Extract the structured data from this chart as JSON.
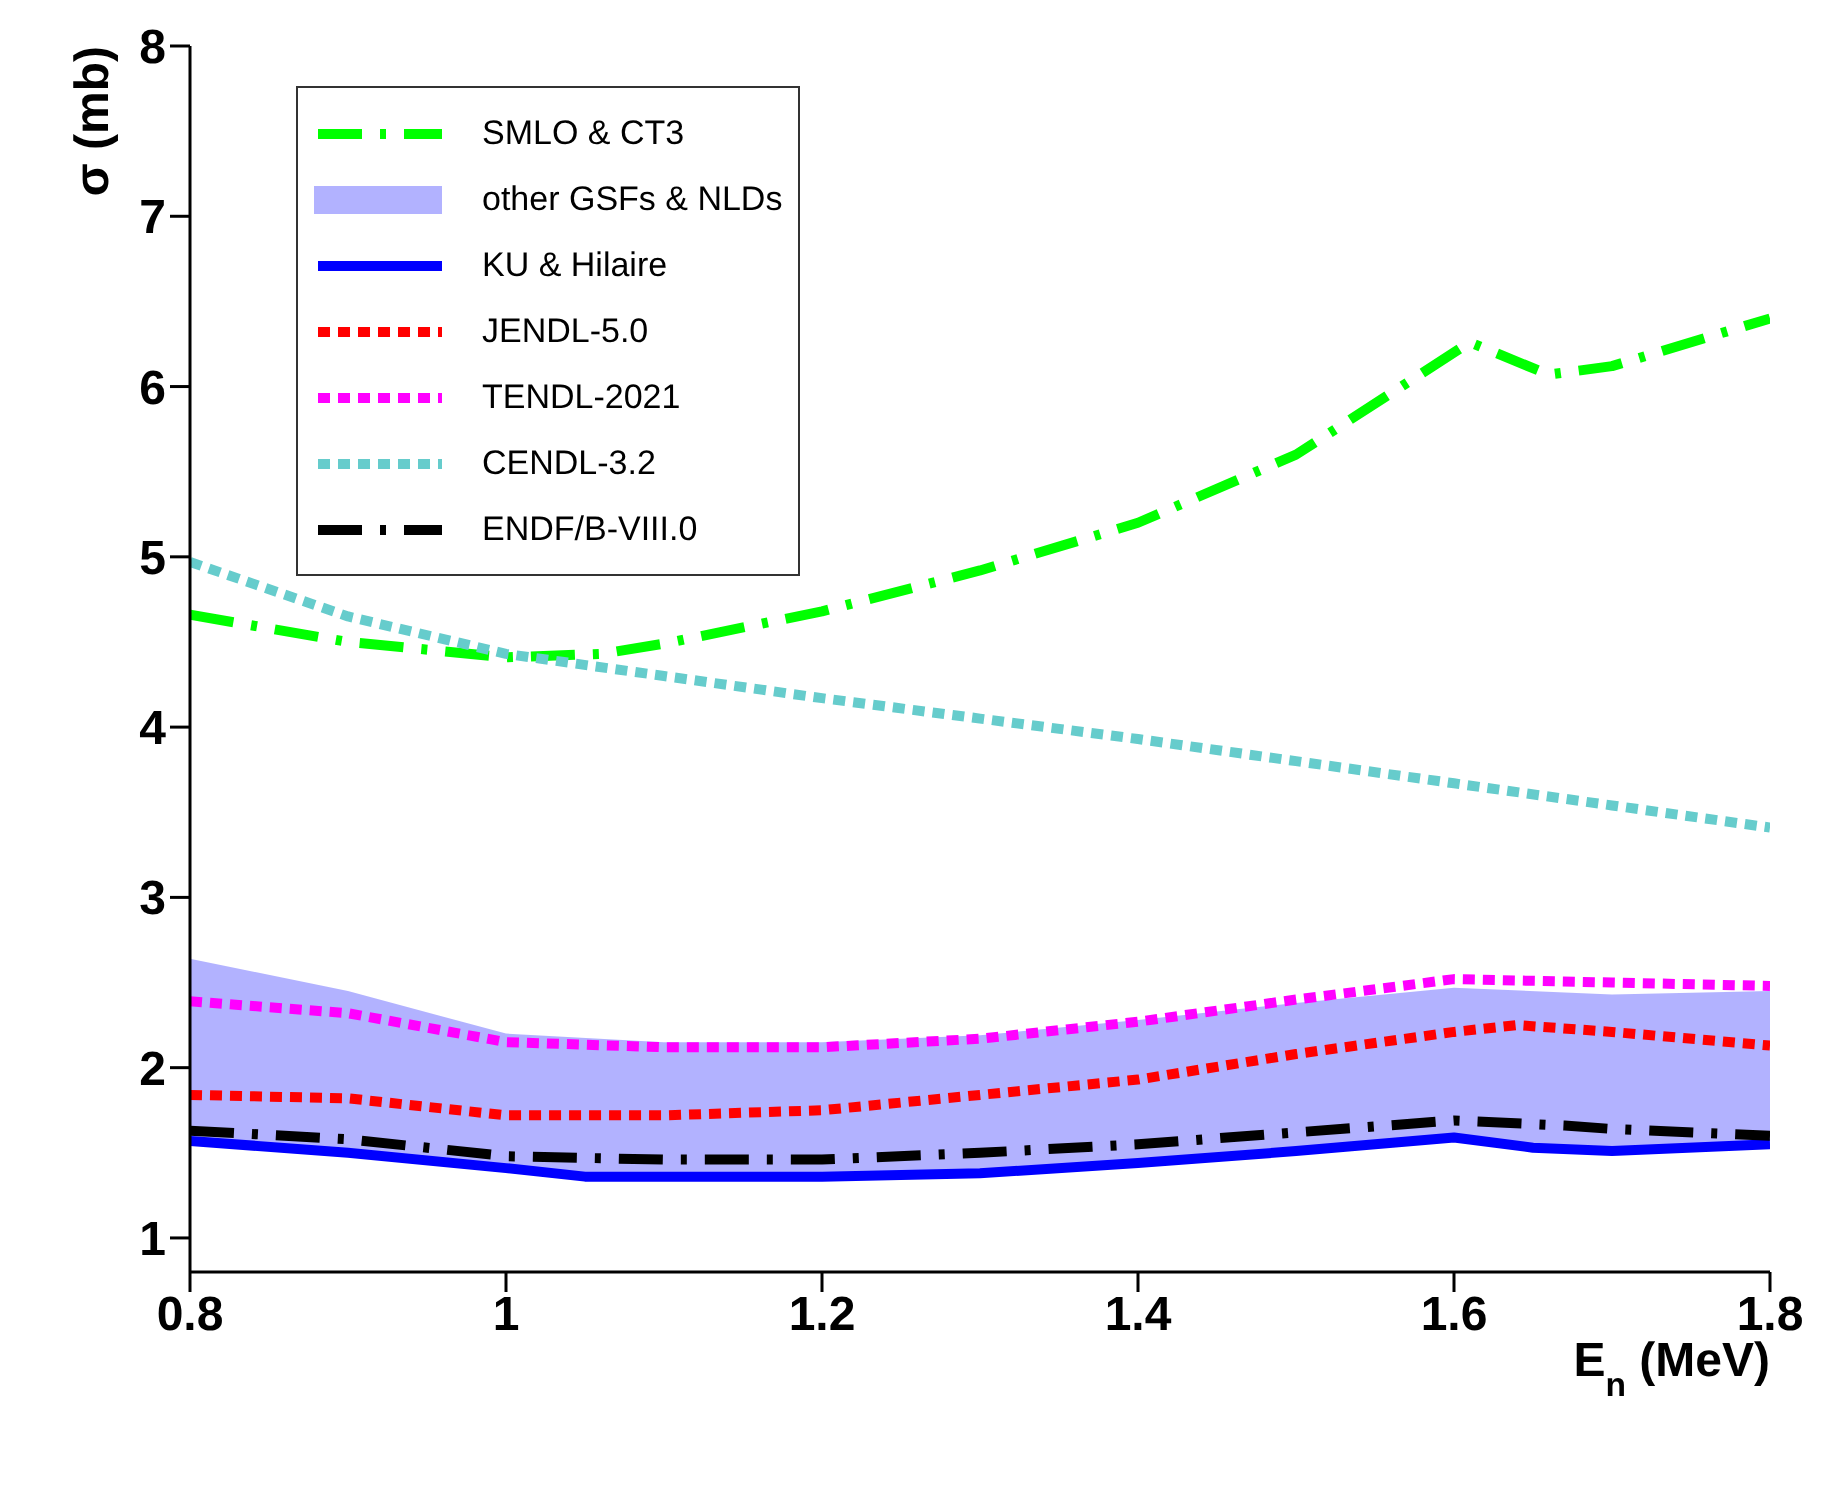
{
  "chart_data": {
    "type": "line",
    "xlabel": "E$_{n}$ (MeV)",
    "ylabel": "σ (mb)",
    "xlim": [
      0.8,
      1.8
    ],
    "xticks": [
      0.8,
      1,
      1.2,
      1.4,
      1.6,
      1.8
    ],
    "ylim": [
      0.8,
      8
    ],
    "yticks": [
      1,
      2,
      3,
      4,
      5,
      6,
      7,
      8
    ],
    "grid": false,
    "legend": "top left",
    "marker": "none",
    "series": [
      {
        "name": "SMLO & CT3",
        "color": "#00ff00",
        "line_style": "dashed",
        "x": [
          0.8,
          0.9,
          1.0,
          1.06,
          1.1,
          1.2,
          1.3,
          1.4,
          1.5,
          1.61,
          1.66,
          1.7,
          1.8
        ],
        "values": [
          4.66,
          4.5,
          4.41,
          4.43,
          4.49,
          4.68,
          4.92,
          5.2,
          5.6,
          6.26,
          6.07,
          6.12,
          6.4
        ]
      },
      {
        "name": "other GSFs & NLDs",
        "type": "area",
        "color": "#0000ff",
        "x": [
          0.8,
          0.9,
          1.0,
          1.1,
          1.2,
          1.3,
          1.4,
          1.5,
          1.6,
          1.7,
          1.8
        ],
        "values": [
          null,
          null,
          null,
          null,
          null,
          null,
          null,
          null,
          null,
          null,
          null
        ],
        "lower": [
          1.57,
          1.5,
          1.41,
          1.36,
          1.36,
          1.38,
          1.44,
          1.51,
          1.59,
          1.51,
          1.55
        ],
        "upper": [
          2.64,
          2.45,
          2.2,
          2.15,
          2.15,
          2.19,
          2.28,
          2.38,
          2.47,
          2.43,
          2.45
        ]
      },
      {
        "name": "KU & Hilaire",
        "color": "#0000ff",
        "line_style": "solid",
        "x": [
          0.8,
          0.9,
          1.0,
          1.05,
          1.2,
          1.3,
          1.4,
          1.5,
          1.6,
          1.65,
          1.7,
          1.8
        ],
        "values": [
          1.57,
          1.5,
          1.41,
          1.36,
          1.36,
          1.38,
          1.44,
          1.51,
          1.59,
          1.53,
          1.51,
          1.55
        ]
      },
      {
        "name": "JENDL-5.0",
        "color": "#ff0000",
        "line_style": "dotted",
        "x": [
          0.8,
          0.9,
          1.0,
          1.1,
          1.2,
          1.3,
          1.4,
          1.5,
          1.6,
          1.64,
          1.7,
          1.8
        ],
        "values": [
          1.84,
          1.82,
          1.72,
          1.72,
          1.75,
          1.84,
          1.93,
          2.08,
          2.21,
          2.25,
          2.21,
          2.13
        ]
      },
      {
        "name": "TENDL-2021",
        "color": "#ff00ff",
        "line_style": "dotted",
        "x": [
          0.8,
          0.9,
          1.0,
          1.1,
          1.2,
          1.3,
          1.4,
          1.5,
          1.6,
          1.7,
          1.8
        ],
        "values": [
          2.39,
          2.32,
          2.15,
          2.12,
          2.12,
          2.17,
          2.27,
          2.4,
          2.52,
          2.5,
          2.48
        ]
      },
      {
        "name": "CENDL-3.2",
        "color": "#66cccc",
        "line_style": "dotted",
        "x": [
          0.8,
          0.9,
          1.0,
          1.1,
          1.2,
          1.3,
          1.4,
          1.5,
          1.6,
          1.7,
          1.8
        ],
        "values": [
          4.97,
          4.65,
          4.43,
          4.3,
          4.17,
          4.05,
          3.93,
          3.8,
          3.67,
          3.54,
          3.41
        ]
      },
      {
        "name": "ENDF/B-VIII.0",
        "color": "#000000",
        "line_style": "dashed",
        "x": [
          0.8,
          0.9,
          1.0,
          1.1,
          1.2,
          1.3,
          1.4,
          1.5,
          1.6,
          1.67,
          1.7,
          1.8
        ],
        "values": [
          1.63,
          1.58,
          1.48,
          1.46,
          1.46,
          1.5,
          1.55,
          1.62,
          1.69,
          1.66,
          1.64,
          1.6
        ]
      }
    ]
  }
}
